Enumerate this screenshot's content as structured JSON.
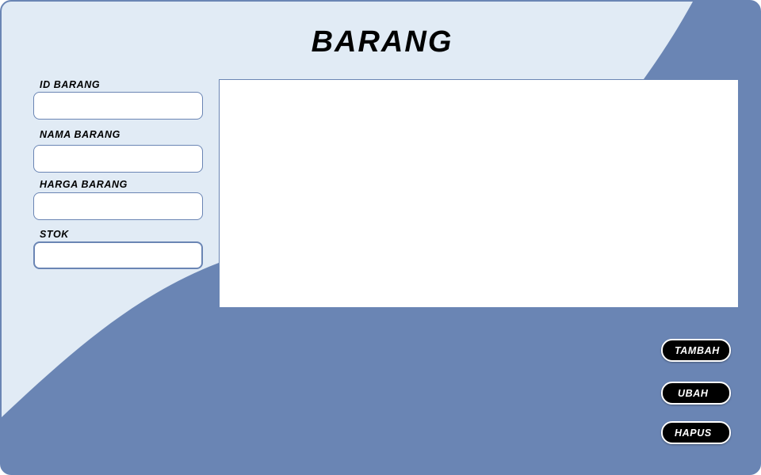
{
  "title": "BARANG",
  "form": {
    "fields": [
      {
        "label": "ID BARANG",
        "value": ""
      },
      {
        "label": "NAMA BARANG",
        "value": ""
      },
      {
        "label": "HARGA BARANG",
        "value": ""
      },
      {
        "label": "STOK",
        "value": ""
      }
    ]
  },
  "buttons": {
    "tambah": "TAMBAH",
    "ubah": "UBAH",
    "hapus": "HAPUS"
  },
  "colors": {
    "primary": "#6a85b4",
    "background_light": "#e1ebf5",
    "button": "#000000"
  }
}
